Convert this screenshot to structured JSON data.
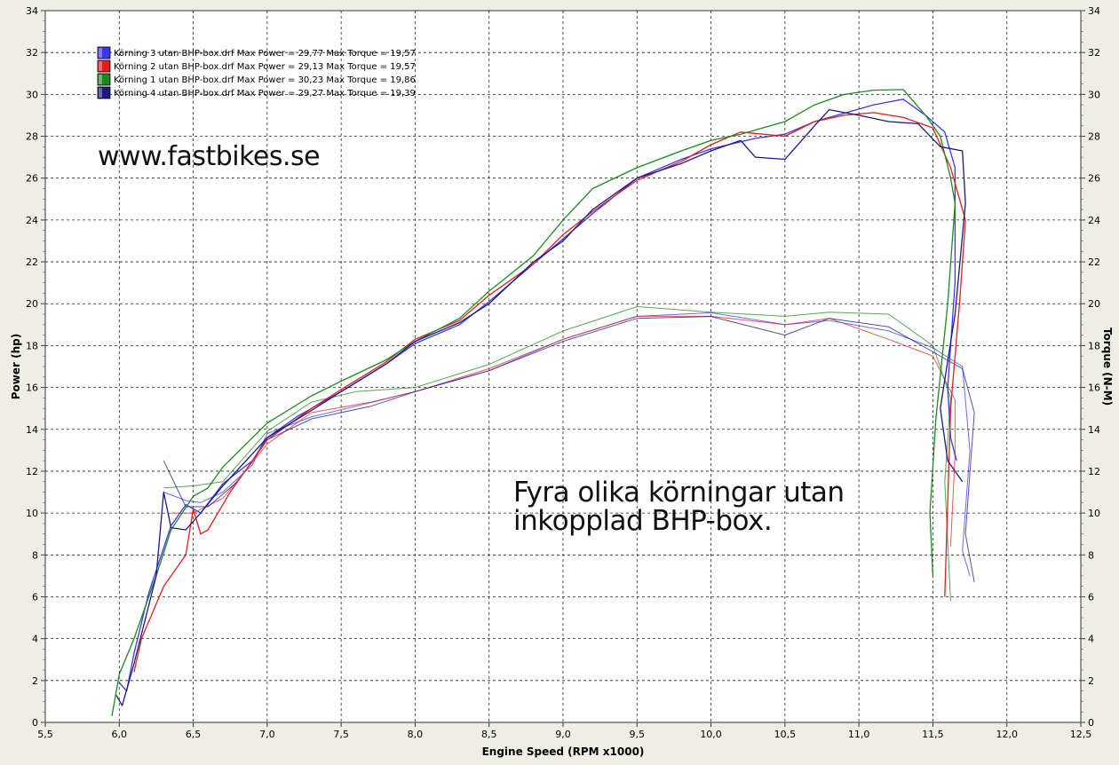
{
  "chart_data": {
    "type": "line",
    "xlabel": "Engine Speed (RPM x1000)",
    "ylabel": "Power (hp)",
    "y2label": "Torque (N-M)",
    "xlim": [
      5.5,
      12.5
    ],
    "ylim": [
      0,
      34
    ],
    "y2lim": [
      0,
      34
    ],
    "x_ticks": [
      "5,5",
      "6,0",
      "6,5",
      "7,0",
      "7,5",
      "8,0",
      "8,5",
      "9,0",
      "9,5",
      "10,0",
      "10,5",
      "11,0",
      "11,5",
      "12,0",
      "12,5"
    ],
    "y_ticks": [
      "0",
      "2",
      "4",
      "6",
      "8",
      "10",
      "12",
      "14",
      "16",
      "18",
      "20",
      "22",
      "24",
      "26",
      "28",
      "30",
      "32",
      "34"
    ],
    "grid": true,
    "legend_position": "top-left",
    "watermark": "www.fastbikes.se",
    "annotation": [
      "Fyra olika körningar utan",
      "inkopplad BHP-box."
    ],
    "series": [
      {
        "name": "Körning 3 utan BHP-box.drf Max Power = 29,77 Max Torque = 19,57",
        "color": "#3b38e8",
        "power": [
          [
            6.0,
            1.9
          ],
          [
            6.05,
            1.5
          ],
          [
            6.1,
            3.3
          ],
          [
            6.2,
            6.2
          ],
          [
            6.35,
            9.4
          ],
          [
            6.45,
            10.4
          ],
          [
            6.55,
            10.0
          ],
          [
            6.7,
            11.4
          ],
          [
            6.9,
            12.5
          ],
          [
            7.0,
            13.6
          ],
          [
            7.2,
            14.6
          ],
          [
            7.5,
            15.8
          ],
          [
            7.8,
            17.1
          ],
          [
            8.0,
            18.1
          ],
          [
            8.3,
            19.0
          ],
          [
            8.5,
            20.1
          ],
          [
            8.8,
            21.9
          ],
          [
            9.0,
            23.1
          ],
          [
            9.2,
            24.3
          ],
          [
            9.5,
            26.0
          ],
          [
            9.8,
            26.9
          ],
          [
            10.0,
            27.4
          ],
          [
            10.3,
            27.9
          ],
          [
            10.5,
            28.1
          ],
          [
            10.7,
            28.7
          ],
          [
            10.9,
            29.1
          ],
          [
            11.1,
            29.5
          ],
          [
            11.3,
            29.77
          ],
          [
            11.45,
            29.0
          ],
          [
            11.58,
            28.2
          ],
          [
            11.65,
            26.5
          ],
          [
            11.65,
            21.0
          ],
          [
            11.6,
            16.0
          ],
          [
            11.62,
            13.6
          ],
          [
            11.66,
            12.5
          ]
        ],
        "torque": [
          [
            6.3,
            11.0
          ],
          [
            6.45,
            10.6
          ],
          [
            6.55,
            10.5
          ],
          [
            6.7,
            11.0
          ],
          [
            6.9,
            12.3
          ],
          [
            7.0,
            13.8
          ],
          [
            7.3,
            14.6
          ],
          [
            7.6,
            15.1
          ],
          [
            8.0,
            15.8
          ],
          [
            8.5,
            16.8
          ],
          [
            9.0,
            18.3
          ],
          [
            9.5,
            19.4
          ],
          [
            10.0,
            19.57
          ],
          [
            10.5,
            19.0
          ],
          [
            10.8,
            19.2
          ],
          [
            11.2,
            18.7
          ],
          [
            11.5,
            17.9
          ],
          [
            11.7,
            17.0
          ],
          [
            11.75,
            13.0
          ],
          [
            11.7,
            8.2
          ],
          [
            11.75,
            7.0
          ]
        ]
      },
      {
        "name": "Körning 2 utan BHP-box.drf Max Power = 29,13 Max Torque = 19,57",
        "color": "#e02020",
        "power": [
          [
            6.1,
            2.4
          ],
          [
            6.15,
            4.0
          ],
          [
            6.3,
            6.5
          ],
          [
            6.45,
            8.0
          ],
          [
            6.5,
            10.2
          ],
          [
            6.55,
            9.0
          ],
          [
            6.6,
            9.2
          ],
          [
            6.75,
            11.0
          ],
          [
            7.0,
            13.5
          ],
          [
            7.3,
            15.0
          ],
          [
            7.5,
            15.9
          ],
          [
            7.8,
            17.2
          ],
          [
            8.0,
            18.3
          ],
          [
            8.3,
            19.2
          ],
          [
            8.5,
            20.4
          ],
          [
            8.8,
            21.9
          ],
          [
            9.0,
            23.3
          ],
          [
            9.2,
            24.4
          ],
          [
            9.5,
            25.9
          ],
          [
            9.8,
            26.8
          ],
          [
            10.0,
            27.6
          ],
          [
            10.2,
            28.2
          ],
          [
            10.5,
            28.0
          ],
          [
            10.7,
            28.7
          ],
          [
            10.9,
            29.0
          ],
          [
            11.1,
            29.13
          ],
          [
            11.3,
            28.9
          ],
          [
            11.5,
            28.4
          ],
          [
            11.62,
            26.5
          ],
          [
            11.72,
            24.0
          ],
          [
            11.68,
            20.0
          ],
          [
            11.62,
            15.0
          ],
          [
            11.6,
            10.5
          ],
          [
            11.58,
            6.0
          ]
        ],
        "torque": [
          [
            6.35,
            10.0
          ],
          [
            6.5,
            10.0
          ],
          [
            6.7,
            10.7
          ],
          [
            7.0,
            13.3
          ],
          [
            7.3,
            14.8
          ],
          [
            7.7,
            15.3
          ],
          [
            8.0,
            15.8
          ],
          [
            8.5,
            16.9
          ],
          [
            9.0,
            18.3
          ],
          [
            9.5,
            19.4
          ],
          [
            10.0,
            19.4
          ],
          [
            10.5,
            19.0
          ],
          [
            10.8,
            19.3
          ],
          [
            11.2,
            18.3
          ],
          [
            11.5,
            17.5
          ],
          [
            11.65,
            15.4
          ],
          [
            11.65,
            12.8
          ],
          [
            11.62,
            8.4
          ]
        ]
      },
      {
        "name": "Körning 1 utan BHP-box.drf Max Power = 30,23 Max Torque = 19,86",
        "color": "#1e8a1e",
        "power": [
          [
            5.95,
            0.3
          ],
          [
            6.0,
            2.3
          ],
          [
            6.1,
            4.0
          ],
          [
            6.25,
            7.0
          ],
          [
            6.35,
            9.2
          ],
          [
            6.5,
            10.8
          ],
          [
            6.6,
            11.2
          ],
          [
            6.7,
            12.2
          ],
          [
            7.0,
            14.3
          ],
          [
            7.3,
            15.6
          ],
          [
            7.5,
            16.3
          ],
          [
            7.8,
            17.3
          ],
          [
            8.0,
            18.2
          ],
          [
            8.3,
            19.3
          ],
          [
            8.5,
            20.6
          ],
          [
            8.8,
            22.3
          ],
          [
            9.0,
            24.0
          ],
          [
            9.2,
            25.5
          ],
          [
            9.5,
            26.5
          ],
          [
            9.8,
            27.3
          ],
          [
            10.0,
            27.8
          ],
          [
            10.2,
            28.1
          ],
          [
            10.5,
            28.7
          ],
          [
            10.7,
            29.5
          ],
          [
            10.9,
            30.0
          ],
          [
            11.1,
            30.2
          ],
          [
            11.3,
            30.23
          ],
          [
            11.45,
            29.0
          ],
          [
            11.55,
            28.0
          ],
          [
            11.62,
            26.0
          ],
          [
            11.65,
            24.8
          ],
          [
            11.6,
            20.0
          ],
          [
            11.52,
            14.5
          ],
          [
            11.48,
            10.0
          ],
          [
            11.5,
            7.0
          ]
        ],
        "torque": [
          [
            6.3,
            11.2
          ],
          [
            6.5,
            11.3
          ],
          [
            6.7,
            11.5
          ],
          [
            7.0,
            13.9
          ],
          [
            7.3,
            15.3
          ],
          [
            7.6,
            15.8
          ],
          [
            8.0,
            16.0
          ],
          [
            8.5,
            17.1
          ],
          [
            9.0,
            18.7
          ],
          [
            9.5,
            19.86
          ],
          [
            10.0,
            19.6
          ],
          [
            10.5,
            19.4
          ],
          [
            10.8,
            19.6
          ],
          [
            11.2,
            19.5
          ],
          [
            11.5,
            18.0
          ],
          [
            11.62,
            15.5
          ],
          [
            11.58,
            11.5
          ],
          [
            11.62,
            5.8
          ]
        ]
      },
      {
        "name": "Körning 4 utan BHP-box.drf Max Power = 29,27 Max Torque = 19,39",
        "color": "#1a1a80",
        "power": [
          [
            5.98,
            1.3
          ],
          [
            6.02,
            0.8
          ],
          [
            6.1,
            2.8
          ],
          [
            6.25,
            7.0
          ],
          [
            6.3,
            11.0
          ],
          [
            6.35,
            9.3
          ],
          [
            6.45,
            9.2
          ],
          [
            6.55,
            10.0
          ],
          [
            6.7,
            11.3
          ],
          [
            7.0,
            13.6
          ],
          [
            7.3,
            14.9
          ],
          [
            7.5,
            15.8
          ],
          [
            7.8,
            17.1
          ],
          [
            8.0,
            18.2
          ],
          [
            8.3,
            19.1
          ],
          [
            8.5,
            20.0
          ],
          [
            8.8,
            22.0
          ],
          [
            9.0,
            23.0
          ],
          [
            9.2,
            24.5
          ],
          [
            9.5,
            26.0
          ],
          [
            9.8,
            26.7
          ],
          [
            10.0,
            27.3
          ],
          [
            10.2,
            27.8
          ],
          [
            10.3,
            27.0
          ],
          [
            10.5,
            26.9
          ],
          [
            10.7,
            28.5
          ],
          [
            10.8,
            29.27
          ],
          [
            11.0,
            29.0
          ],
          [
            11.2,
            28.7
          ],
          [
            11.4,
            28.6
          ],
          [
            11.55,
            27.5
          ],
          [
            11.7,
            27.3
          ],
          [
            11.72,
            24.8
          ],
          [
            11.65,
            19.5
          ],
          [
            11.55,
            15.0
          ],
          [
            11.6,
            12.5
          ],
          [
            11.7,
            11.5
          ]
        ],
        "torque": [
          [
            6.3,
            12.5
          ],
          [
            6.45,
            10.3
          ],
          [
            6.6,
            10.3
          ],
          [
            6.8,
            11.5
          ],
          [
            7.0,
            13.5
          ],
          [
            7.3,
            14.5
          ],
          [
            7.7,
            15.1
          ],
          [
            8.0,
            15.8
          ],
          [
            8.5,
            16.8
          ],
          [
            9.0,
            18.2
          ],
          [
            9.5,
            19.3
          ],
          [
            10.0,
            19.39
          ],
          [
            10.5,
            18.5
          ],
          [
            10.8,
            19.3
          ],
          [
            11.2,
            18.9
          ],
          [
            11.5,
            17.7
          ],
          [
            11.7,
            16.9
          ],
          [
            11.78,
            14.8
          ],
          [
            11.72,
            9.0
          ],
          [
            11.78,
            6.7
          ]
        ]
      }
    ]
  }
}
